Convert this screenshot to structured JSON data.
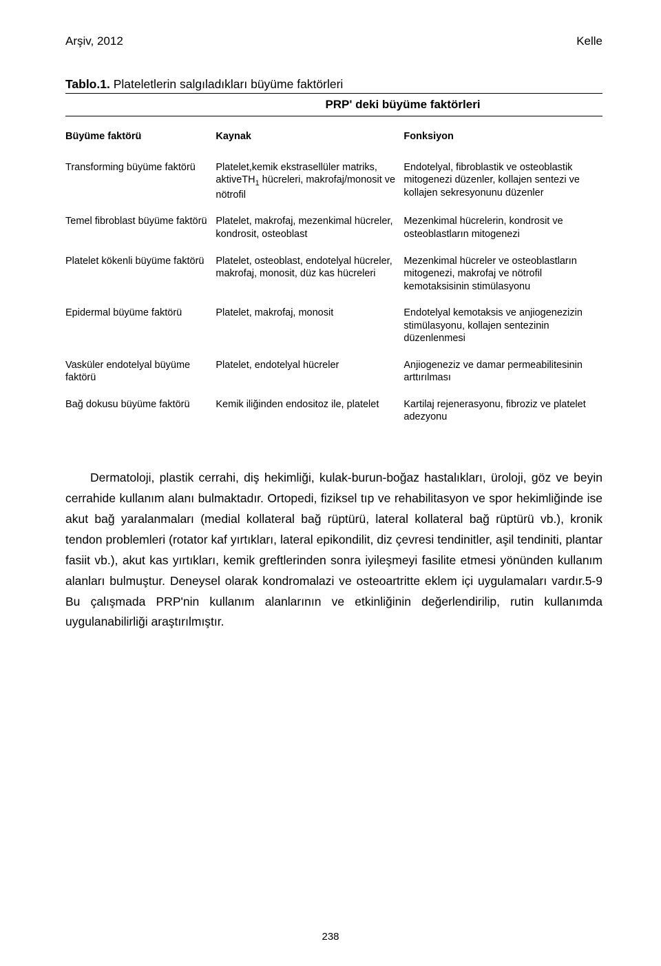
{
  "header": {
    "left": "Arşiv, 2012",
    "right": "Kelle"
  },
  "table": {
    "title_bold": "Tablo.1.",
    "title_rest": " Plateletlerin salgıladıkları büyüme faktörleri",
    "subtitle": "PRP' deki büyüme faktörleri",
    "head": {
      "c1": "Büyüme faktörü",
      "c2": "Kaynak",
      "c3": "Fonksiyon"
    },
    "rows": [
      {
        "c1": "Transforming büyüme faktörü",
        "c2_a": "Platelet,kemik ekstrasellüler matriks, aktiveTH",
        "c2_sub": "1",
        "c2_b": " hücreleri, makrofaj/monosit ve nötrofil",
        "c3": "Endotelyal, fibroblastik ve osteoblastik mitogenezi düzenler, kollajen sentezi ve kollajen sekresyonunu düzenler"
      },
      {
        "c1": "Temel fibroblast büyüme faktörü",
        "c2": "Platelet, makrofaj, mezenkimal hücreler, kondrosit, osteoblast",
        "c3": "Mezenkimal hücrelerin, kondrosit ve osteoblastların mitogenezi"
      },
      {
        "c1": "Platelet kökenli büyüme faktörü",
        "c2": "Platelet, osteoblast, endotelyal hücreler, makrofaj, monosit, düz kas hücreleri",
        "c3": "Mezenkimal hücreler ve osteoblastların mitogenezi, makrofaj ve nötrofil kemotaksisinin stimülasyonu"
      },
      {
        "c1": "Epidermal büyüme faktörü",
        "c2": "Platelet, makrofaj, monosit",
        "c3": "Endotelyal kemotaksis ve anjiogenezizin stimülasyonu, kollajen sentezinin düzenlenmesi"
      },
      {
        "c1": "Vasküler endotelyal büyüme faktörü",
        "c2": "Platelet, endotelyal hücreler",
        "c3": "Anjiogeneziz ve damar permeabilitesinin arttırılması"
      },
      {
        "c1": "Bağ dokusu büyüme faktörü",
        "c2": "Kemik iliğinden endositoz ile, platelet",
        "c3": "Kartilaj rejenerasyonu, fibroziz ve platelet adezyonu"
      }
    ]
  },
  "paragraph": "Dermatoloji, plastik cerrahi, diş hekimliği, kulak-burun-boğaz hastalıkları, üroloji, göz ve beyin cerrahide kullanım alanı bulmaktadır. Ortopedi, fiziksel tıp ve rehabilitasyon ve spor hekimliğinde ise akut bağ yaralanmaları (medial kollateral bağ rüptürü, lateral kollateral bağ rüptürü vb.), kronik tendon problemleri (rotator kaf yırtıkları, lateral epikondilit, diz çevresi tendinitler, aşil tendiniti, plantar fasiit vb.), akut kas yırtıkları, kemik greftlerinden sonra iyileşmeyi fasilite etmesi yönünden kullanım alanları bulmuştur. Deneysel olarak kondromalazi ve osteoartritte eklem içi uygulamaları vardır.5-9 Bu çalışmada PRP'nin kullanım alanlarının ve etkinliğinin değerlendirilip, rutin kullanımda uygulanabilirliği araştırılmıştır.",
  "page_number": "238"
}
